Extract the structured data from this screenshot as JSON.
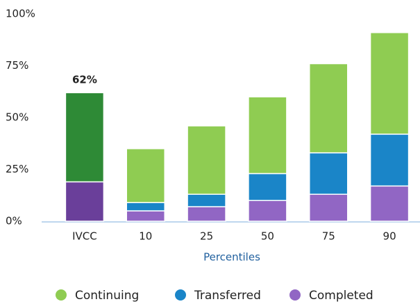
{
  "chart_data": {
    "type": "stacked_bar",
    "categories": [
      "IVCC",
      "10",
      "25",
      "50",
      "75",
      "90"
    ],
    "series": [
      {
        "name": "Completed",
        "color": "#9166c4",
        "colors": [
          "#6a3f9a",
          "#9166c4",
          "#9166c4",
          "#9166c4",
          "#9166c4",
          "#9166c4"
        ],
        "values": [
          19,
          5,
          7,
          10,
          13,
          17
        ]
      },
      {
        "name": "Transferred",
        "color": "#1a85c8",
        "colors": [
          "#1a85c8",
          "#1a85c8",
          "#1a85c8",
          "#1a85c8",
          "#1a85c8",
          "#1a85c8"
        ],
        "values": [
          0,
          4,
          6,
          13,
          20,
          25
        ]
      },
      {
        "name": "Continuing",
        "color": "#8fcc52",
        "colors": [
          "#2e8a36",
          "#8fcc52",
          "#8fcc52",
          "#8fcc52",
          "#8fcc52",
          "#8fcc52"
        ],
        "values": [
          43,
          26,
          33,
          37,
          43,
          49
        ]
      }
    ],
    "total_labels": [
      "62%",
      null,
      null,
      null,
      null,
      null
    ],
    "x_label": "Percentiles",
    "ylim": [
      0,
      100
    ],
    "yticks": [
      {
        "value": 0,
        "label": "0%"
      },
      {
        "value": 25,
        "label": "25%"
      },
      {
        "value": 50,
        "label": "50%"
      },
      {
        "value": 75,
        "label": "75%"
      },
      {
        "value": 100,
        "label": "100%"
      }
    ],
    "grid": false
  }
}
